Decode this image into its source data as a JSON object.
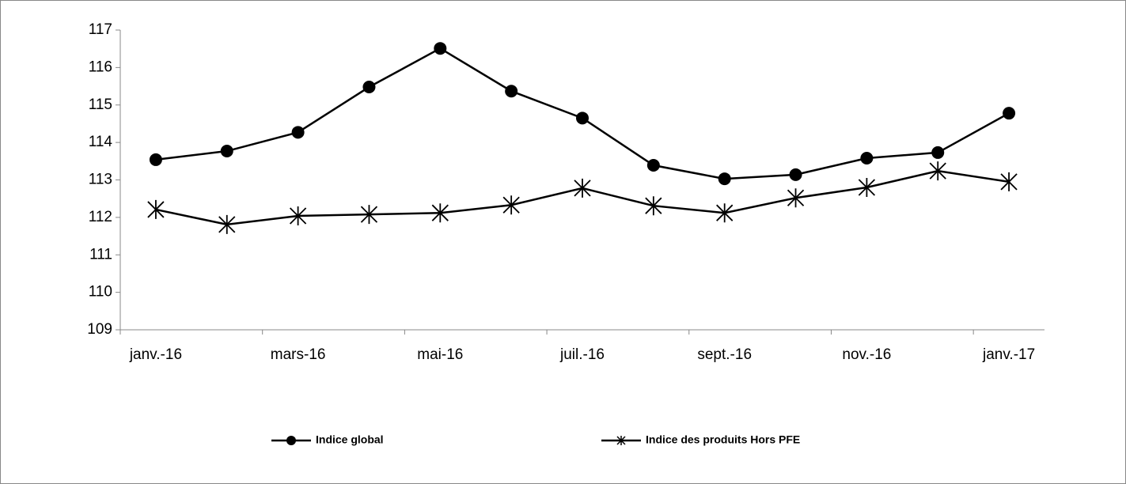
{
  "chart_data": {
    "type": "line",
    "categories": [
      "janv.-16",
      null,
      "mars-16",
      null,
      "mai-16",
      null,
      "juil.-16",
      null,
      "sept.-16",
      null,
      "nov.-16",
      null,
      "janv.-17"
    ],
    "series": [
      {
        "name": "Indice global",
        "color": "#000000",
        "marker": "circle",
        "values": [
          113.54,
          113.77,
          114.27,
          115.48,
          116.51,
          115.37,
          114.65,
          113.39,
          113.03,
          113.14,
          113.58,
          113.73,
          114.78
        ]
      },
      {
        "name": "Indice des produits Hors PFE",
        "color": "#000000",
        "marker": "star",
        "values": [
          112.21,
          111.81,
          112.04,
          112.08,
          112.12,
          112.33,
          112.78,
          112.31,
          112.12,
          112.52,
          112.8,
          113.24,
          112.95
        ]
      }
    ],
    "ylim": [
      109,
      117
    ],
    "yticks": [
      109,
      110,
      111,
      112,
      113,
      114,
      115,
      116,
      117
    ],
    "grid": false,
    "legend": "bottom"
  }
}
